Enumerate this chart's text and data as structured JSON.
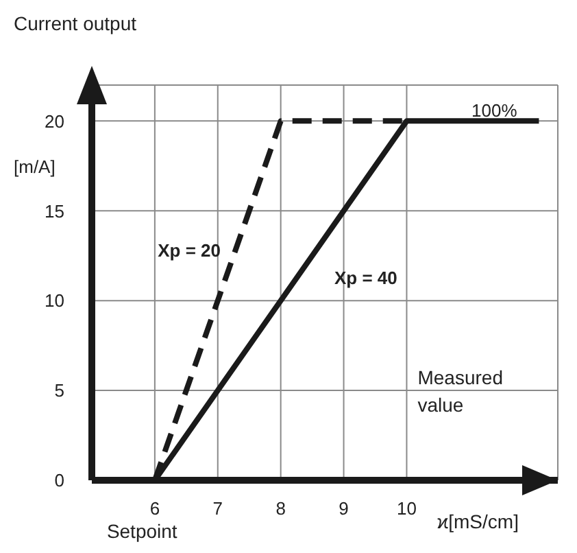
{
  "chart_data": {
    "type": "line",
    "title": "Current output",
    "ylabel": "[m/A]",
    "xlabel": "ϰ[mS/cm]",
    "xlim": [
      5,
      12.4
    ],
    "xticks": [
      6,
      7,
      8,
      9,
      10
    ],
    "ylim": [
      0,
      22
    ],
    "yticks": [
      0,
      5,
      10,
      15,
      20
    ],
    "grid": true,
    "marker": "none",
    "series": [
      {
        "x": [
          6,
          8,
          10
        ],
        "values": [
          0,
          20,
          20
        ],
        "color": "#1a1a1a",
        "line_style": "dashed"
      },
      {
        "x": [
          6,
          10,
          12.1
        ],
        "values": [
          0,
          20,
          20
        ],
        "color": "#1a1a1a",
        "line_style": "solid"
      }
    ],
    "annotations": [
      "Xp = 20",
      "Xp = 40",
      "100%",
      "Measured value",
      "Setpoint"
    ]
  }
}
